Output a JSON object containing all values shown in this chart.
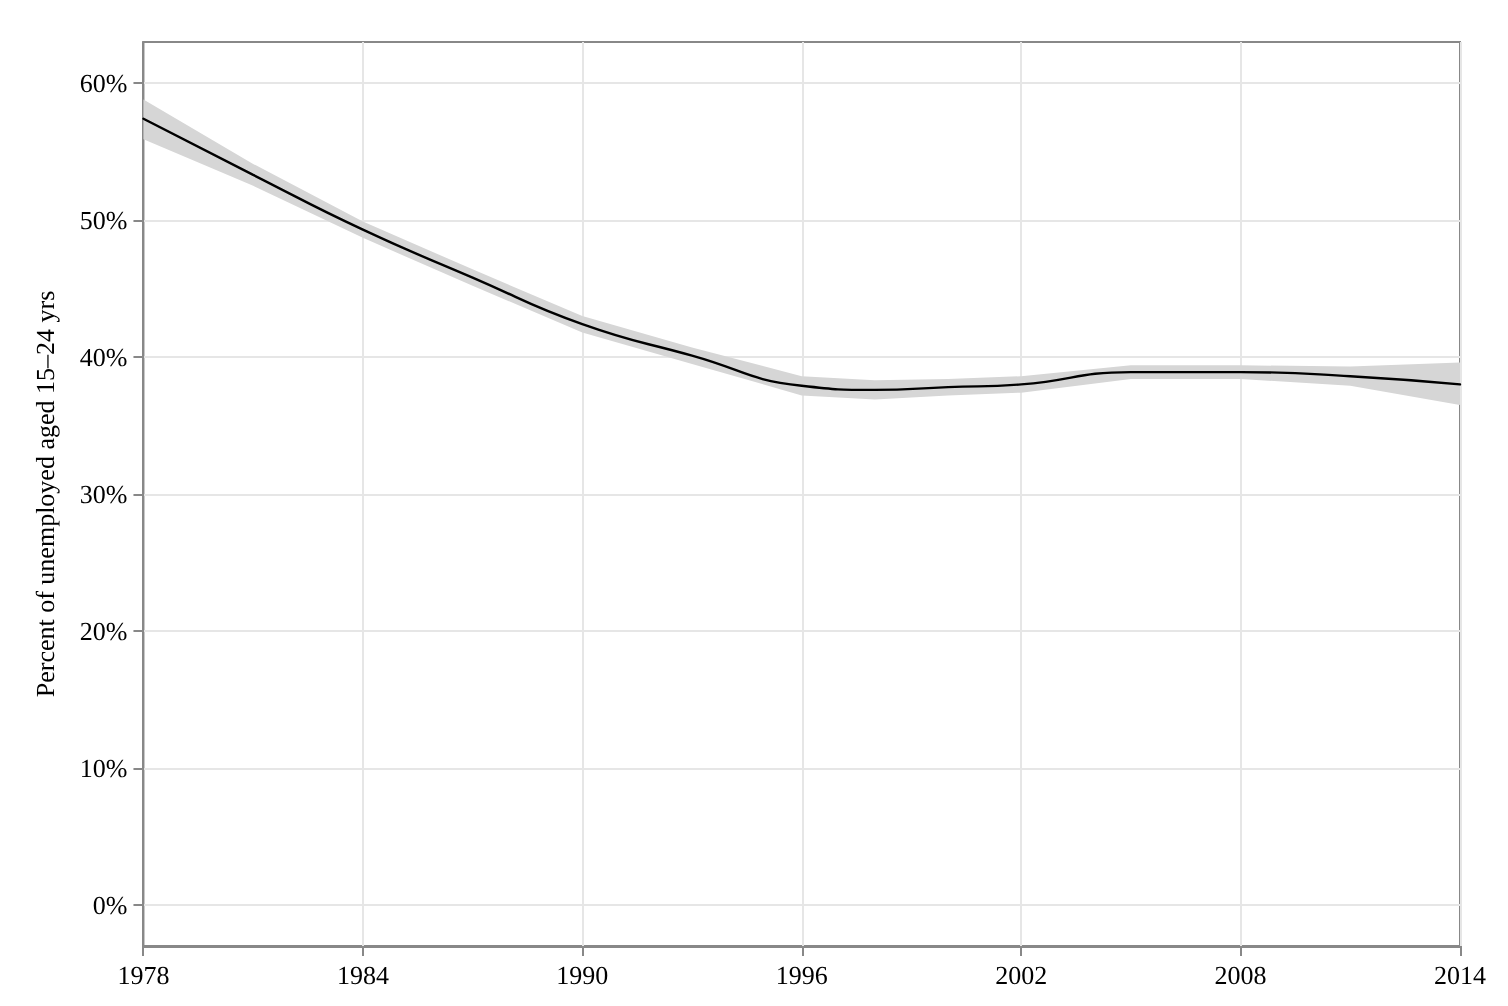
{
  "chart_data": {
    "type": "line",
    "ylabel": "Percent of unemployed aged 15–24 yrs",
    "x": [
      1978,
      1981,
      1984,
      1987,
      1990,
      1993,
      1996,
      1998,
      2000,
      2002,
      2005,
      2008,
      2011,
      2014
    ],
    "series": [
      {
        "color": "#000000",
        "values": [
          57.4,
          53.3,
          49.3,
          45.8,
          42.4,
          40.1,
          37.9,
          37.6,
          37.8,
          38.0,
          38.9,
          38.9,
          38.6,
          38.0
        ],
        "lower": [
          55.9,
          52.5,
          48.7,
          45.2,
          41.8,
          39.5,
          37.2,
          36.9,
          37.2,
          37.4,
          38.4,
          38.4,
          37.9,
          36.5
        ],
        "upper": [
          58.8,
          54.1,
          49.9,
          46.4,
          43.0,
          40.7,
          38.6,
          38.3,
          38.4,
          38.6,
          39.4,
          39.4,
          39.3,
          39.6
        ]
      }
    ],
    "xlim": [
      1978,
      2014
    ],
    "xticks": [
      1978,
      1984,
      1990,
      1996,
      2002,
      2008,
      2014
    ],
    "ylim": [
      -3,
      63
    ],
    "yticks": [
      {
        "value": 0,
        "label": "0%"
      },
      {
        "value": 10,
        "label": "10%"
      },
      {
        "value": 20,
        "label": "20%"
      },
      {
        "value": 30,
        "label": "30%"
      },
      {
        "value": 40,
        "label": "40%"
      },
      {
        "value": 50,
        "label": "50%"
      },
      {
        "value": 60,
        "label": "60%"
      }
    ],
    "grid": true,
    "marker": "none",
    "line_style": "solid"
  }
}
